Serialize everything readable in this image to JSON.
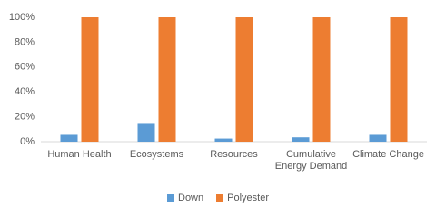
{
  "chart_data": {
    "type": "bar",
    "categories": [
      "Human Health",
      "Ecosystems",
      "Resources",
      "Cumulative Energy Demand",
      "Climate Change"
    ],
    "series": [
      {
        "name": "Down",
        "color": "#5b9bd5",
        "values": [
          5.5,
          15,
          2.5,
          3.5,
          5.5
        ]
      },
      {
        "name": "Polyester",
        "color": "#ed7d31",
        "values": [
          100,
          100,
          100,
          100,
          100
        ]
      }
    ],
    "ylim": [
      0,
      100
    ],
    "yticks": [
      {
        "value": 0,
        "label": "0%"
      },
      {
        "value": 20,
        "label": "20%"
      },
      {
        "value": 40,
        "label": "40%"
      },
      {
        "value": 60,
        "label": "60%"
      },
      {
        "value": 80,
        "label": "80%"
      },
      {
        "value": 100,
        "label": "100%"
      }
    ],
    "legend": "bottom"
  }
}
